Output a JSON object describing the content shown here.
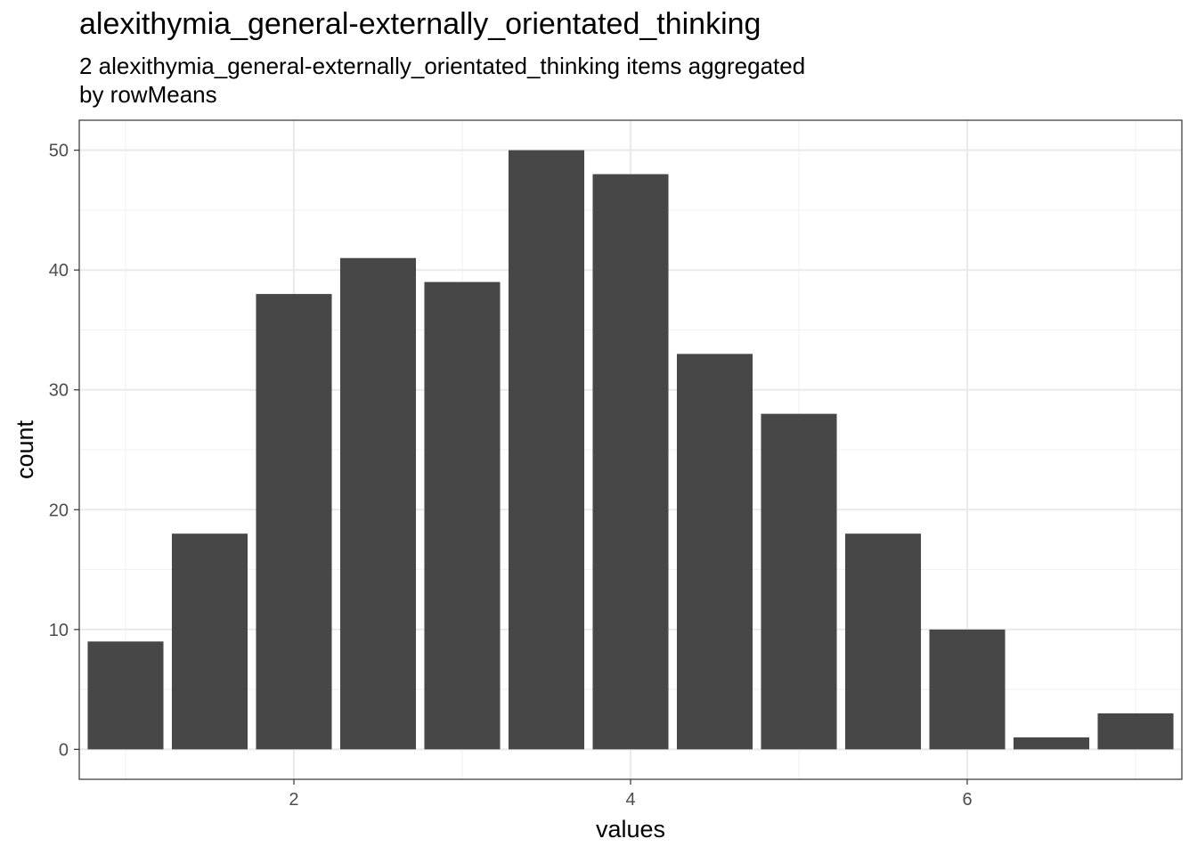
{
  "title": "alexithymia_general-externally_orientated_thinking",
  "subtitle_line1": "2 alexithymia_general-externally_orientated_thinking items aggregated",
  "subtitle_line2": "by rowMeans",
  "colors": {
    "bar": "#474747",
    "panel_border": "#333333",
    "grid_major": "#ebebeb",
    "grid_minor": "#f2f2f2"
  },
  "chart_data": {
    "type": "bar",
    "title": "alexithymia_general-externally_orientated_thinking",
    "subtitle": "2 alexithymia_general-externally_orientated_thinking items aggregated by rowMeans",
    "xlabel": "values",
    "ylabel": "count",
    "x": [
      1,
      1.5,
      2,
      2.5,
      3,
      3.5,
      4,
      4.5,
      5,
      5.5,
      6,
      6.5,
      7
    ],
    "values": [
      9,
      18,
      38,
      41,
      39,
      50,
      48,
      33,
      28,
      18,
      10,
      1,
      3
    ],
    "bin_width": 0.5,
    "xlim": [
      0.725,
      7.275
    ],
    "ylim": [
      -2.5,
      52.5
    ],
    "x_ticks": [
      2,
      4,
      6
    ],
    "y_ticks": [
      0,
      10,
      20,
      30,
      40,
      50
    ],
    "grid": true,
    "legend": "none"
  }
}
